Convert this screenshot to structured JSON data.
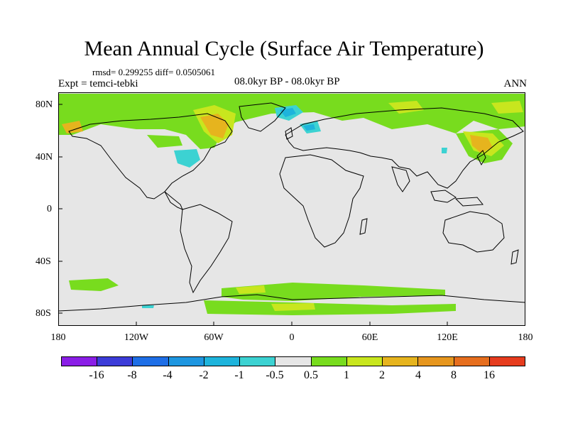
{
  "title": "Mean Annual Cycle (Surface Air Temperature)",
  "stats": "rmsd= 0.299255  diff= 0.0505061",
  "experiment": "Expt = temci-tebki",
  "period": "08.0kyr BP - 08.0kyr BP",
  "season": "ANN",
  "lat_labels": [
    "80N",
    "40N",
    "0",
    "40S",
    "80S"
  ],
  "lon_labels": [
    "180",
    "120W",
    "60W",
    "0",
    "60E",
    "120E",
    "180"
  ],
  "colorbar": {
    "labels": [
      "-16",
      "-8",
      "-4",
      "-2",
      "-1",
      "-0.5",
      "0.5",
      "1",
      "2",
      "4",
      "8",
      "16"
    ],
    "colors": [
      "#8a1ee6",
      "#3c3cd8",
      "#1e6ee6",
      "#1e96e0",
      "#1eb4dc",
      "#3cd2d2",
      "#e6e6e6",
      "#78dc1e",
      "#c8e61e",
      "#e6b41e",
      "#e6961e",
      "#e66e1e",
      "#e63c1e"
    ]
  }
}
